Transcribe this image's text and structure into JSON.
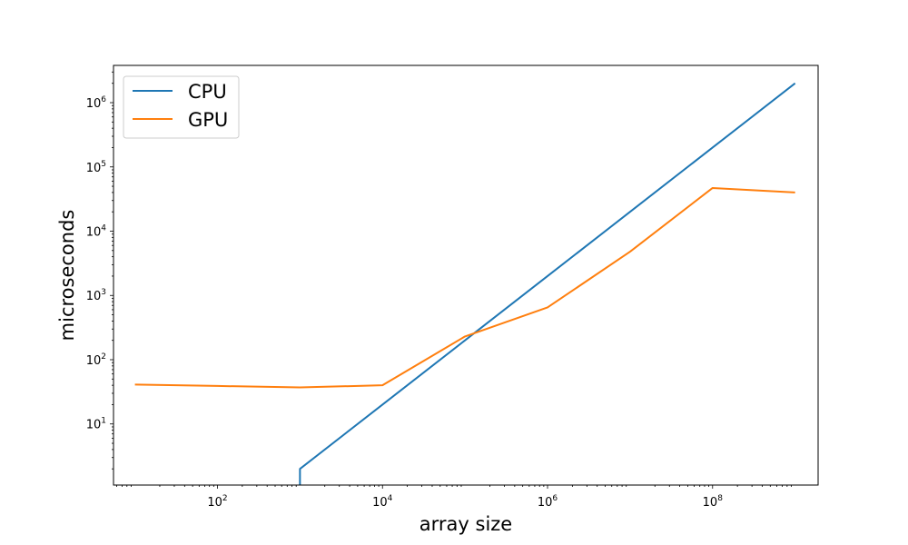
{
  "chart_data": {
    "type": "line",
    "title": "",
    "xlabel": "array size",
    "ylabel": "microseconds",
    "xscale": "log",
    "yscale": "log",
    "xlim": [
      5.5,
      1900000000
    ],
    "ylim": [
      1.12,
      3800000
    ],
    "grid": false,
    "legend_position": "top-left",
    "x_ticks": [
      {
        "base": "10",
        "exp": "2",
        "value": 100
      },
      {
        "base": "10",
        "exp": "4",
        "value": 10000
      },
      {
        "base": "10",
        "exp": "6",
        "value": 1000000
      },
      {
        "base": "10",
        "exp": "8",
        "value": 100000000
      }
    ],
    "y_ticks": [
      {
        "base": "10",
        "exp": "1",
        "value": 10
      },
      {
        "base": "10",
        "exp": "2",
        "value": 100
      },
      {
        "base": "10",
        "exp": "3",
        "value": 1000
      },
      {
        "base": "10",
        "exp": "4",
        "value": 10000
      },
      {
        "base": "10",
        "exp": "5",
        "value": 100000
      },
      {
        "base": "10",
        "exp": "6",
        "value": 1000000
      }
    ],
    "series": [
      {
        "name": "CPU",
        "color": "#1f77b4",
        "x": [
          1000,
          1000,
          10000,
          100000,
          1000000,
          10000000,
          100000000,
          1000000000
        ],
        "y": [
          1.12,
          2,
          20,
          200,
          2000,
          20000,
          200000,
          2000000
        ]
      },
      {
        "name": "GPU",
        "color": "#ff7f0e",
        "x": [
          10,
          100,
          1000,
          10000,
          100000,
          1000000,
          10000000,
          100000000,
          1000000000
        ],
        "y": [
          41,
          39,
          37,
          40,
          230,
          650,
          4800,
          47000,
          40000
        ]
      }
    ]
  }
}
